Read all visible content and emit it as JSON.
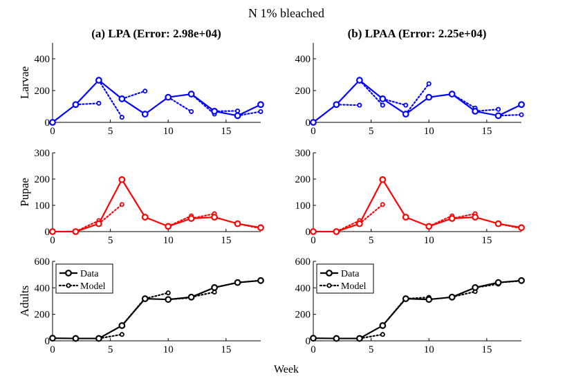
{
  "figure": {
    "title": "N 1% bleached",
    "xlabel": "Week"
  },
  "legend": {
    "data_label": "Data",
    "model_label": "Model"
  },
  "colors": {
    "larvae": "#0000ff",
    "pupae": "#ff0000",
    "adults": "#000000"
  },
  "chart_data": [
    {
      "type": "line",
      "panel": "(a) LPA",
      "title": "(a) LPA (Error: 2.98e+04)",
      "xlabel": "Week",
      "rows": [
        {
          "name": "Larvae",
          "ylabel": "Larvae",
          "color": "#0000ff",
          "ylim": [
            0,
            500
          ],
          "yticks": [
            0,
            200,
            400
          ],
          "xlim": [
            0,
            18
          ],
          "xticks": [
            0,
            5,
            10,
            15
          ],
          "show_xticks": true,
          "data_x": [
            0,
            2,
            4,
            6,
            8,
            10,
            12,
            14,
            16,
            18
          ],
          "data_y": [
            0,
            112,
            265,
            148,
            52,
            158,
            178,
            70,
            42,
            112
          ],
          "model_segments": [
            {
              "x": [
                2,
                4
              ],
              "y": [
                112,
                120
              ]
            },
            {
              "x": [
                4,
                6
              ],
              "y": [
                265,
                32
              ]
            },
            {
              "x": [
                6,
                8
              ],
              "y": [
                148,
                197
              ]
            },
            {
              "x": [
                10,
                12
              ],
              "y": [
                158,
                68
              ]
            },
            {
              "x": [
                12,
                14
              ],
              "y": [
                178,
                52
              ]
            },
            {
              "x": [
                14,
                16
              ],
              "y": [
                70,
                72
              ]
            },
            {
              "x": [
                16,
                18
              ],
              "y": [
                42,
                68
              ]
            }
          ]
        },
        {
          "name": "Pupae",
          "ylabel": "Pupae",
          "color": "#ff0000",
          "ylim": [
            0,
            300
          ],
          "yticks": [
            0,
            100,
            200,
            300
          ],
          "xlim": [
            0,
            18
          ],
          "xticks": [
            0,
            5,
            10,
            15
          ],
          "show_xticks": true,
          "data_x": [
            0,
            2,
            4,
            6,
            8,
            10,
            12,
            14,
            16,
            18
          ],
          "data_y": [
            0,
            0,
            30,
            198,
            55,
            20,
            50,
            55,
            30,
            15
          ],
          "model_segments": [
            {
              "x": [
                2,
                4
              ],
              "y": [
                0,
                42
              ]
            },
            {
              "x": [
                4,
                6
              ],
              "y": [
                30,
                103
              ]
            },
            {
              "x": [
                10,
                12
              ],
              "y": [
                20,
                60
              ]
            },
            {
              "x": [
                12,
                14
              ],
              "y": [
                50,
                68
              ]
            },
            {
              "x": [
                16,
                18
              ],
              "y": [
                30,
                12
              ]
            }
          ]
        },
        {
          "name": "Adults",
          "ylabel": "Adults",
          "color": "#000000",
          "ylim": [
            0,
            600
          ],
          "yticks": [
            0,
            200,
            400,
            600
          ],
          "xlim": [
            0,
            18
          ],
          "xticks": [
            0,
            5,
            10,
            15
          ],
          "show_xticks": true,
          "data_x": [
            0,
            2,
            4,
            6,
            8,
            10,
            12,
            14,
            16,
            18
          ],
          "data_y": [
            20,
            18,
            18,
            115,
            318,
            312,
            330,
            402,
            440,
            455
          ],
          "model_segments": [
            {
              "x": [
                4,
                6
              ],
              "y": [
                18,
                48
              ]
            },
            {
              "x": [
                6,
                8
              ],
              "y": [
                115,
                322
              ]
            },
            {
              "x": [
                8,
                10
              ],
              "y": [
                318,
                362
              ]
            },
            {
              "x": [
                10,
                12
              ],
              "y": [
                312,
                325
              ]
            },
            {
              "x": [
                12,
                14
              ],
              "y": [
                330,
                368
              ]
            },
            {
              "x": [
                14,
                16
              ],
              "y": [
                402,
                440
              ]
            },
            {
              "x": [
                16,
                18
              ],
              "y": [
                440,
                455
              ]
            }
          ],
          "legend": true
        }
      ]
    },
    {
      "type": "line",
      "panel": "(b) LPAA",
      "title": "(b) LPAA (Error: 2.25e+04)",
      "xlabel": "Week",
      "rows": [
        {
          "name": "Larvae",
          "ylabel": "",
          "color": "#0000ff",
          "ylim": [
            0,
            500
          ],
          "yticks": [
            0,
            200,
            400
          ],
          "xlim": [
            0,
            18
          ],
          "xticks": [
            0,
            5,
            10,
            15
          ],
          "show_xticks": true,
          "data_x": [
            0,
            2,
            4,
            6,
            8,
            10,
            12,
            14,
            16,
            18
          ],
          "data_y": [
            0,
            112,
            265,
            148,
            52,
            158,
            178,
            70,
            42,
            112
          ],
          "model_segments": [
            {
              "x": [
                2,
                4
              ],
              "y": [
                112,
                108
              ]
            },
            {
              "x": [
                4,
                6
              ],
              "y": [
                265,
                108
              ]
            },
            {
              "x": [
                6,
                8
              ],
              "y": [
                148,
                108
              ]
            },
            {
              "x": [
                8,
                10
              ],
              "y": [
                52,
                243
              ]
            },
            {
              "x": [
                12,
                14
              ],
              "y": [
                178,
                90
              ]
            },
            {
              "x": [
                14,
                16
              ],
              "y": [
                70,
                82
              ]
            },
            {
              "x": [
                16,
                18
              ],
              "y": [
                42,
                48
              ]
            }
          ]
        },
        {
          "name": "Pupae",
          "ylabel": "",
          "color": "#ff0000",
          "ylim": [
            0,
            300
          ],
          "yticks": [
            0,
            100,
            200,
            300
          ],
          "xlim": [
            0,
            18
          ],
          "xticks": [
            0,
            5,
            10,
            15
          ],
          "show_xticks": true,
          "data_x": [
            0,
            2,
            4,
            6,
            8,
            10,
            12,
            14,
            16,
            18
          ],
          "data_y": [
            0,
            0,
            30,
            198,
            55,
            20,
            50,
            55,
            30,
            15
          ],
          "model_segments": [
            {
              "x": [
                2,
                4
              ],
              "y": [
                0,
                42
              ]
            },
            {
              "x": [
                4,
                6
              ],
              "y": [
                30,
                103
              ]
            },
            {
              "x": [
                10,
                12
              ],
              "y": [
                20,
                60
              ]
            },
            {
              "x": [
                12,
                14
              ],
              "y": [
                50,
                68
              ]
            },
            {
              "x": [
                16,
                18
              ],
              "y": [
                30,
                12
              ]
            }
          ]
        },
        {
          "name": "Adults",
          "ylabel": "",
          "color": "#000000",
          "ylim": [
            0,
            600
          ],
          "yticks": [
            0,
            200,
            400,
            600
          ],
          "xlim": [
            0,
            18
          ],
          "xticks": [
            0,
            5,
            10,
            15
          ],
          "show_xticks": true,
          "data_x": [
            0,
            2,
            4,
            6,
            8,
            10,
            12,
            14,
            16,
            18
          ],
          "data_y": [
            20,
            18,
            18,
            115,
            318,
            312,
            330,
            402,
            440,
            455
          ],
          "model_segments": [
            {
              "x": [
                4,
                6
              ],
              "y": [
                18,
                48
              ]
            },
            {
              "x": [
                6,
                8
              ],
              "y": [
                115,
                322
              ]
            },
            {
              "x": [
                8,
                10
              ],
              "y": [
                318,
                328
              ]
            },
            {
              "x": [
                12,
                14
              ],
              "y": [
                330,
                372
              ]
            },
            {
              "x": [
                14,
                16
              ],
              "y": [
                402,
                428
              ]
            },
            {
              "x": [
                16,
                18
              ],
              "y": [
                440,
                452
              ]
            }
          ],
          "legend": true
        }
      ]
    }
  ]
}
